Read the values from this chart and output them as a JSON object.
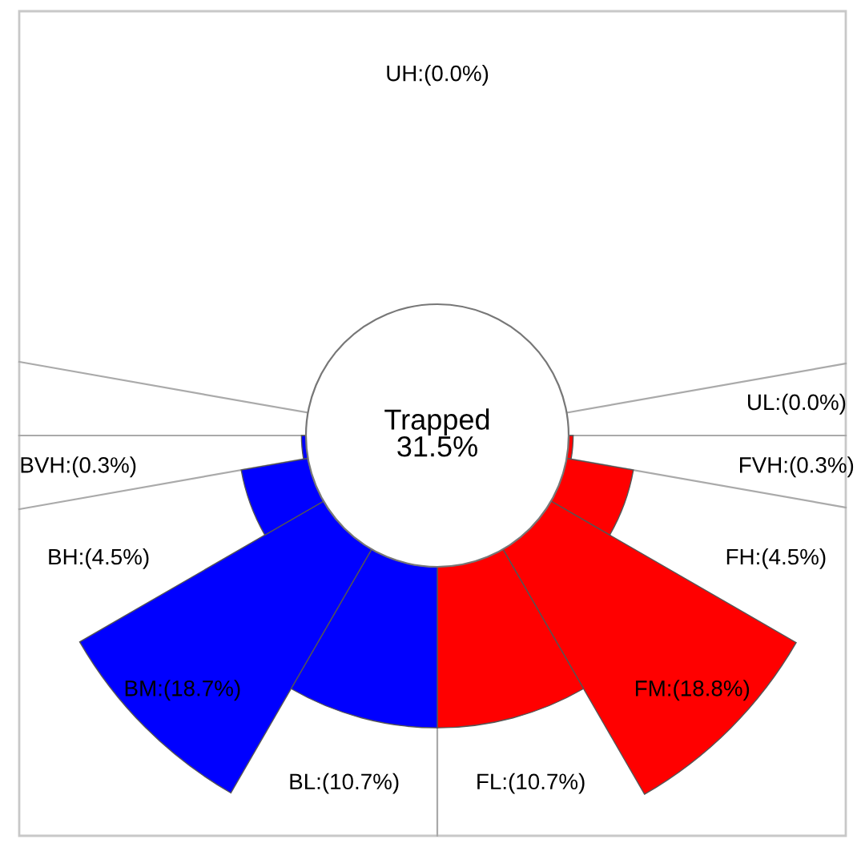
{
  "chart_data": {
    "type": "other",
    "title": "Trapped\n31.5%",
    "categories": [
      "UH",
      "UL",
      "FVH",
      "FH",
      "FM",
      "FL",
      "BL",
      "BM",
      "BH",
      "BVH"
    ],
    "value_labels": [
      ":(0.0%)",
      ":(0.0%)",
      ":(0.3%)",
      ":(4.5%)",
      ":(18.8%)",
      ":(10.7%)",
      ":(10.7%)",
      ":(18.7%)",
      ":(4.5%)",
      ":(0.3%)"
    ],
    "values": [
      0.0,
      0.0,
      0.3,
      4.5,
      18.8,
      10.7,
      10.7,
      18.7,
      4.5,
      0.3
    ],
    "colors": [
      "#00aa00",
      "#00aa00",
      "#ff0000",
      "#ff0000",
      "#ff0000",
      "#ff0000",
      "#0000ff",
      "#0000ff",
      "#0000ff",
      "#0000ff"
    ]
  }
}
